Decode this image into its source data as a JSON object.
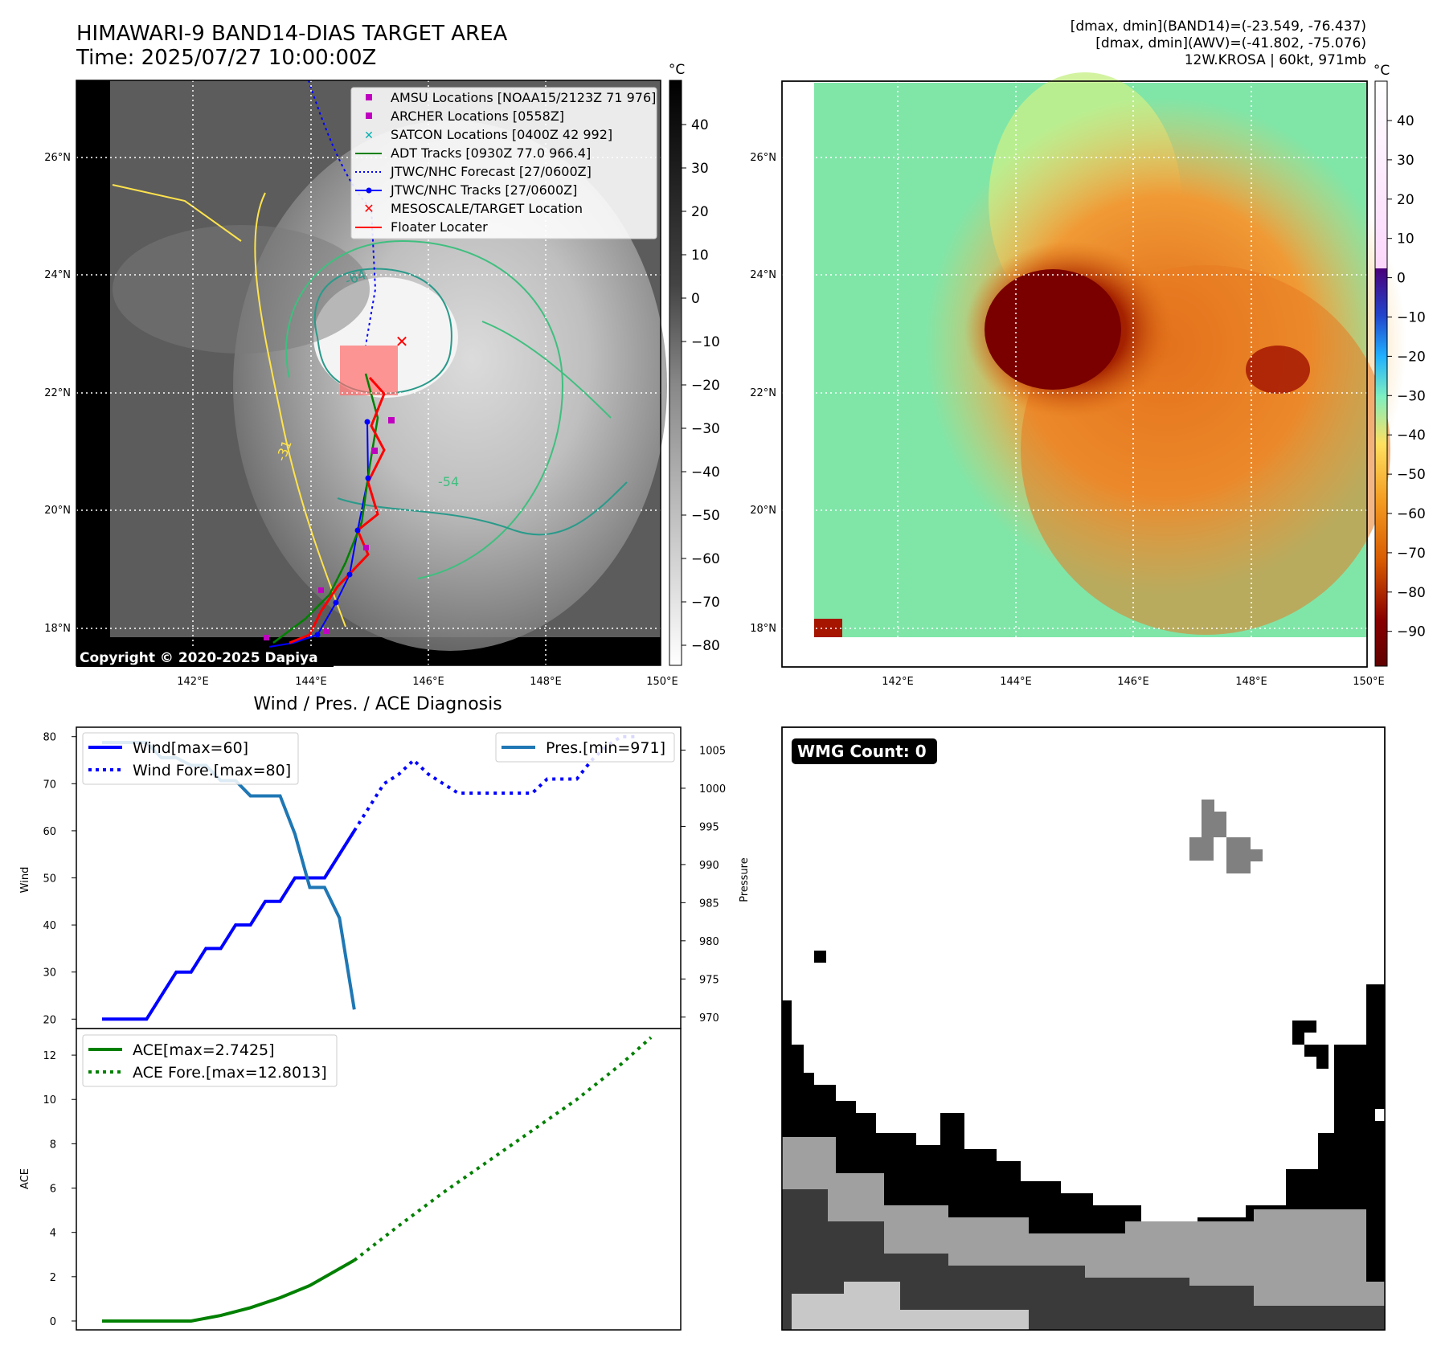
{
  "header": {
    "title_line1": "HIMAWARI-9 BAND14-DIAS TARGET AREA",
    "title_line2": "Time: 2025/07/27 10:00:00Z",
    "info_line1": "[dmax, dmin](BAND14)=(-23.549, -76.437)",
    "info_line2": "[dmax, dmin](AWV)=(-41.802, -75.076)",
    "info_line3": "12W.KROSA | 60kt, 971mb"
  },
  "map_panels": {
    "lat_labels": [
      "26°N",
      "24°N",
      "22°N",
      "20°N",
      "18°N"
    ],
    "lon_labels": [
      "142°E",
      "144°E",
      "146°E",
      "148°E",
      "150°E"
    ],
    "copyright": "Copyright © 2020-2025 Dapiya",
    "left_colorbar": {
      "unit": "°C",
      "ticks": [
        "40",
        "30",
        "20",
        "10",
        "0",
        "−10",
        "−20",
        "−30",
        "−40",
        "−50",
        "−60",
        "−70",
        "−80"
      ]
    },
    "right_colorbar": {
      "unit": "°C",
      "ticks": [
        "40",
        "30",
        "20",
        "10",
        "0",
        "−10",
        "−20",
        "−30",
        "−40",
        "−50",
        "−60",
        "−70",
        "−80",
        "−90"
      ]
    },
    "legend": [
      {
        "label": "AMSU Locations [NOAA15/2123Z 71 976]",
        "marker": "square",
        "color": "#c000c0"
      },
      {
        "label": "ARCHER Locations [0558Z]",
        "marker": "square",
        "color": "#c000c0"
      },
      {
        "label": "SATCON Locations [0400Z 42 992]",
        "marker": "x",
        "color": "#00b0b0"
      },
      {
        "label": "ADT Tracks [0930Z 77.0 966.4]",
        "marker": "line",
        "color": "#008000"
      },
      {
        "label": "JTWC/NHC Forecast [27/0600Z]",
        "marker": "dotted",
        "color": "#0000ff"
      },
      {
        "label": "JTWC/NHC Tracks [27/0600Z]",
        "marker": "line-dot",
        "color": "#0000ff"
      },
      {
        "label": "MESOSCALE/TARGET Location",
        "marker": "x",
        "color": "#ff0000"
      },
      {
        "label": "Floater Locater",
        "marker": "line",
        "color": "#ff0000"
      }
    ],
    "contour_labels": [
      "-64",
      "-31",
      "-54"
    ]
  },
  "chart_data": [
    {
      "type": "line",
      "title": "Wind / Pres. / ACE Diagnosis",
      "ylabel": "Wind",
      "ylabel_right": "Pressure",
      "ylim": [
        18,
        82
      ],
      "ylim_right": [
        968.5,
        1008
      ],
      "yticks": [
        20,
        30,
        40,
        50,
        60,
        70,
        80
      ],
      "yticks_right": [
        970,
        975,
        980,
        985,
        990,
        995,
        1000,
        1005
      ],
      "series": [
        {
          "name": "Wind[max=60]",
          "style": "solid",
          "color": "#0000ff",
          "x": [
            0,
            1,
            2,
            3,
            4,
            5,
            6,
            7,
            8,
            9,
            10,
            11,
            12,
            13,
            14,
            15,
            16,
            17
          ],
          "y": [
            20,
            20,
            20,
            20,
            25,
            30,
            30,
            35,
            35,
            40,
            40,
            45,
            45,
            50,
            50,
            50,
            55,
            60
          ]
        },
        {
          "name": "Wind Fore.[max=80]",
          "style": "dotted",
          "color": "#0000ff",
          "x": [
            17,
            18,
            19,
            20,
            21,
            22,
            23,
            24,
            25,
            26,
            27,
            28,
            29,
            30,
            31,
            32,
            33,
            34,
            35,
            36
          ],
          "y": [
            60,
            65,
            70,
            72,
            75,
            72,
            70,
            68,
            68,
            68,
            68,
            68,
            68,
            71,
            71,
            71,
            75,
            78,
            80,
            80
          ]
        },
        {
          "name": "Pres.[min=971]",
          "style": "solid",
          "color": "#1f77b4",
          "axis": "right",
          "x": [
            0,
            1,
            2,
            3,
            4,
            5,
            6,
            7,
            8,
            9,
            10,
            11,
            12,
            13,
            14,
            15,
            16,
            17
          ],
          "y": [
            1006,
            1006,
            1006,
            1006,
            1004,
            1004,
            1003,
            1003,
            1001,
            1001,
            999,
            999,
            999,
            994,
            987,
            987,
            983,
            971
          ]
        }
      ]
    },
    {
      "type": "line",
      "ylabel": "ACE",
      "ylim": [
        -0.4,
        13.2
      ],
      "yticks": [
        0,
        2,
        4,
        6,
        8,
        10,
        12
      ],
      "series": [
        {
          "name": "ACE[max=2.7425]",
          "style": "solid",
          "color": "#008000",
          "x": [
            0,
            3,
            6,
            8,
            10,
            12,
            14,
            17
          ],
          "y": [
            0,
            0,
            0,
            0.25,
            0.6,
            1.05,
            1.6,
            2.74
          ]
        },
        {
          "name": "ACE Fore.[max=12.8013]",
          "style": "dotted",
          "color": "#008000",
          "x": [
            17,
            20,
            23,
            26,
            29,
            32,
            35,
            37
          ],
          "y": [
            2.74,
            4.3,
            5.8,
            7.2,
            8.6,
            10.0,
            11.6,
            12.8
          ]
        }
      ]
    }
  ],
  "wmg_panel": {
    "badge": "WMG Count: 0"
  }
}
